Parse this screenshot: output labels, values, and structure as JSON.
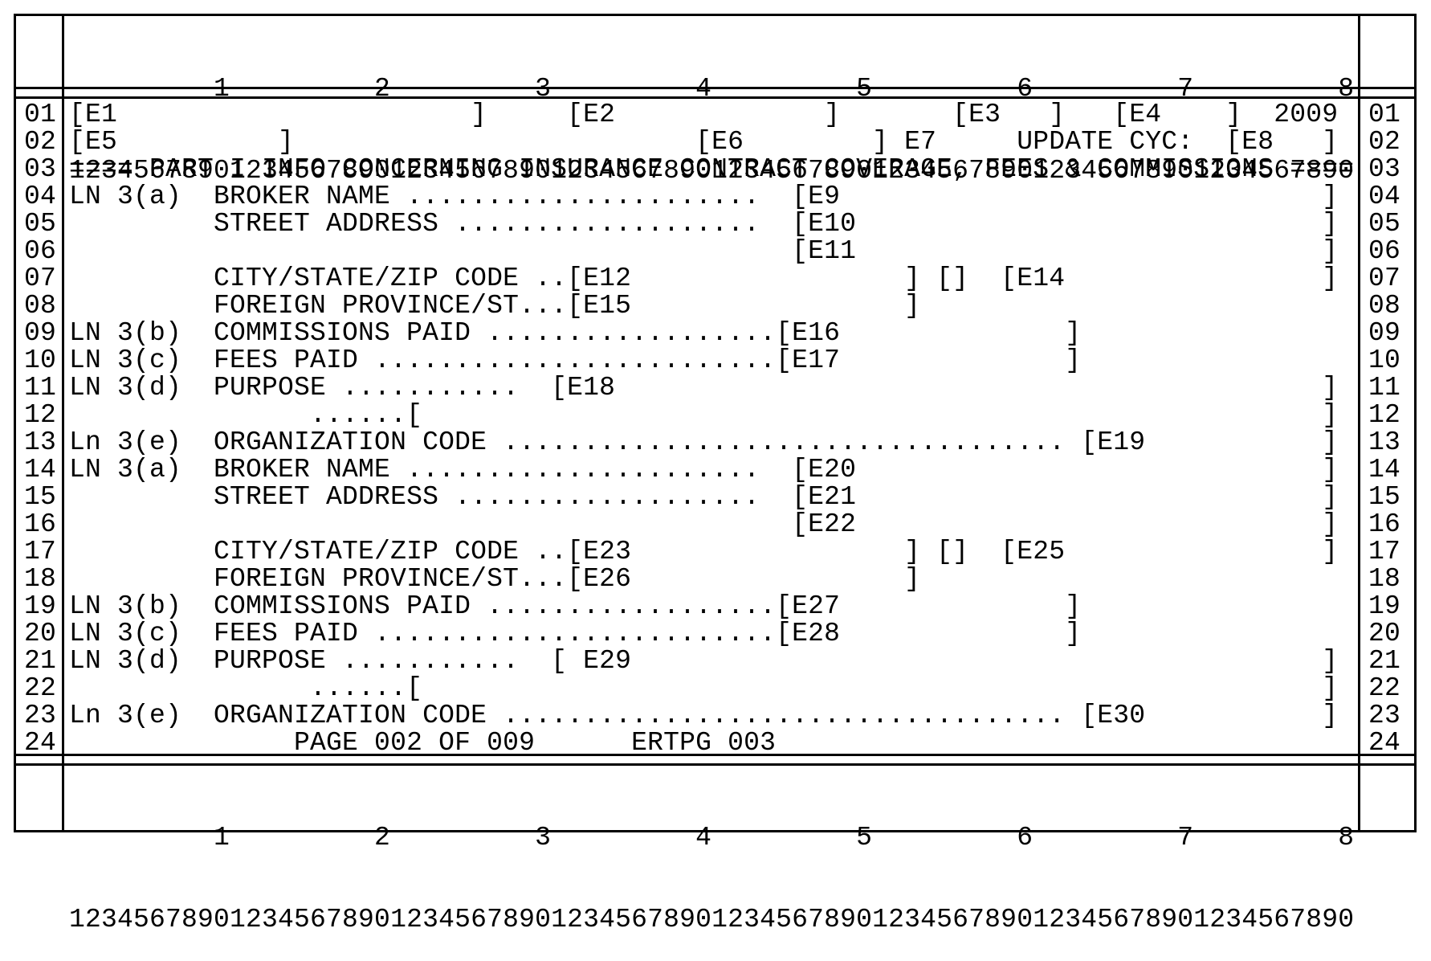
{
  "screen": {
    "ruler_tens": "         1         2         3         4         5         6         7         8",
    "ruler_digits": "12345678901234567890123456789012345678901234567890123456789012345678901234567890",
    "rows": [
      {
        "num": "01",
        "text": "[E1                      ]     [E2             ]       [E3   ]   [E4    ]  2009"
      },
      {
        "num": "02",
        "text": "[E5          ]                         [E6        ] E7     UPDATE CYC:  [E8   ]"
      },
      {
        "num": "03",
        "text": "==== PART I INFO CONCERNING INSURANCE CONTRACT COVERAGE, FEES & COMMISSIONS ===="
      },
      {
        "num": "04",
        "text": "LN 3(a)  BROKER NAME ......................  [E9                              ]"
      },
      {
        "num": "05",
        "text": "         STREET ADDRESS ...................  [E10                             ]"
      },
      {
        "num": "06",
        "text": "                                             [E11                             ]"
      },
      {
        "num": "07",
        "text": "         CITY/STATE/ZIP CODE ..[E12                 ] []  [E14                ]"
      },
      {
        "num": "08",
        "text": "         FOREIGN PROVINCE/ST...[E15                 ]"
      },
      {
        "num": "09",
        "text": "LN 3(b)  COMMISSIONS PAID ..................[E16              ]"
      },
      {
        "num": "10",
        "text": "LN 3(c)  FEES PAID .........................[E17              ]"
      },
      {
        "num": "11",
        "text": "LN 3(d)  PURPOSE ...........  [E18                                            ]"
      },
      {
        "num": "12",
        "text": "               ......[                                                        ]"
      },
      {
        "num": "13",
        "text": "Ln 3(e)  ORGANIZATION CODE ................................... [E19           ]"
      },
      {
        "num": "14",
        "text": "LN 3(a)  BROKER NAME ......................  [E20                             ]"
      },
      {
        "num": "15",
        "text": "         STREET ADDRESS ...................  [E21                             ]"
      },
      {
        "num": "16",
        "text": "                                             [E22                             ]"
      },
      {
        "num": "17",
        "text": "         CITY/STATE/ZIP CODE ..[E23                 ] []  [E25                ]"
      },
      {
        "num": "18",
        "text": "         FOREIGN PROVINCE/ST...[E26                 ]"
      },
      {
        "num": "19",
        "text": "LN 3(b)  COMMISSIONS PAID ..................[E27              ]"
      },
      {
        "num": "20",
        "text": "LN 3(c)  FEES PAID .........................[E28              ]"
      },
      {
        "num": "21",
        "text": "LN 3(d)  PURPOSE ...........  [ E29                                           ]"
      },
      {
        "num": "22",
        "text": "               ......[                                                        ]"
      },
      {
        "num": "23",
        "text": "Ln 3(e)  ORGANIZATION CODE ................................... [E30           ]"
      },
      {
        "num": "24",
        "text": "              PAGE 002 OF 009      ERTPG 003"
      }
    ]
  }
}
